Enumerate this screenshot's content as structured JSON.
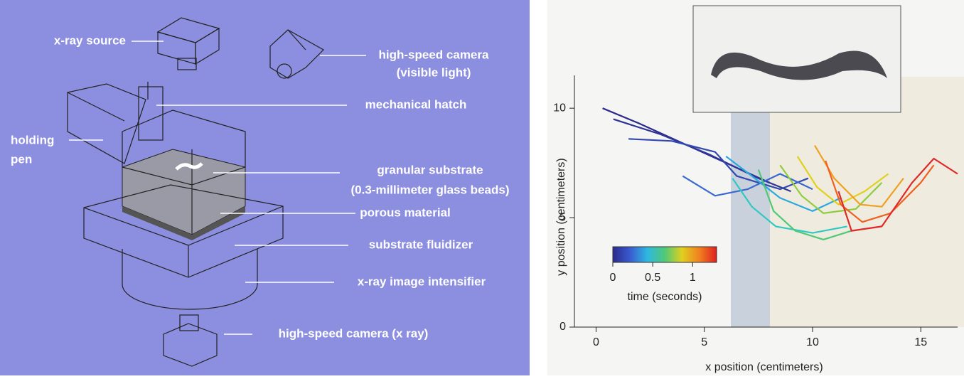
{
  "diagram": {
    "labels": [
      {
        "lines": [
          "x-ray source"
        ]
      },
      {
        "lines": [
          "high-speed camera",
          "(visible light)"
        ]
      },
      {
        "lines": [
          "mechanical hatch"
        ]
      },
      {
        "lines": [
          "holding",
          "pen"
        ]
      },
      {
        "lines": [
          "granular substrate",
          "(0.3-millimeter glass beads)"
        ]
      },
      {
        "lines": [
          "porous material"
        ]
      },
      {
        "lines": [
          "substrate fluidizer"
        ]
      },
      {
        "lines": [
          "x-ray image intensifier"
        ]
      },
      {
        "lines": [
          "high-speed camera (x ray)"
        ]
      }
    ]
  },
  "chart_data": {
    "type": "line",
    "xlabel": "x position (centimeters)",
    "ylabel": "y position (centimeters)",
    "xlim": [
      -1,
      16.7
    ],
    "ylim": [
      0,
      11.5
    ],
    "xticks": [
      0,
      5,
      10,
      15
    ],
    "yticks": [
      0,
      5,
      10
    ],
    "colorbar": {
      "label": "time (seconds)",
      "lim": [
        0,
        1.3
      ],
      "ticks": [
        0,
        0.5,
        1
      ],
      "colors": [
        "#2c2a8a",
        "#3a5bd0",
        "#2eb8e0",
        "#50c878",
        "#e0d020",
        "#f08020",
        "#e02020"
      ]
    },
    "series": [
      {
        "color": "#2c2a8a",
        "x": [
          0.3,
          2,
          4,
          6,
          8
        ],
        "y": [
          10.0,
          9.3,
          8.4,
          7.5,
          6.6
        ]
      },
      {
        "color": "#2e3596",
        "x": [
          0.8,
          3,
          5.2,
          7.5,
          9
        ],
        "y": [
          9.5,
          8.8,
          7.9,
          6.8,
          6.2
        ]
      },
      {
        "color": "#3248b0",
        "x": [
          1.5,
          3.5,
          5.5,
          6.5,
          8.5,
          9.8
        ],
        "y": [
          8.6,
          8.5,
          8.0,
          6.9,
          6.3,
          6.8
        ]
      },
      {
        "color": "#3a6ad0",
        "x": [
          4,
          5.5,
          7,
          8.5,
          10
        ],
        "y": [
          6.9,
          6.0,
          6.3,
          7.0,
          6.3
        ]
      },
      {
        "color": "#2aa8e0",
        "x": [
          6,
          7.2,
          8.5,
          10,
          11.3
        ],
        "y": [
          7.8,
          6.9,
          5.9,
          5.3,
          5.9
        ]
      },
      {
        "color": "#30c8c0",
        "x": [
          6.3,
          7.2,
          8.3,
          10,
          11.6
        ],
        "y": [
          6.8,
          5.5,
          4.6,
          4.3,
          4.6
        ]
      },
      {
        "color": "#50c878",
        "x": [
          7.5,
          8.2,
          9.2,
          10.5,
          11.8
        ],
        "y": [
          7.2,
          5.3,
          4.4,
          4.0,
          4.4
        ]
      },
      {
        "color": "#90cc40",
        "x": [
          8.5,
          9.5,
          10.5,
          12,
          13.2
        ],
        "y": [
          7.4,
          6.0,
          5.2,
          5.4,
          6.6
        ]
      },
      {
        "color": "#e0d020",
        "x": [
          9.3,
          10.2,
          11.2,
          12.4,
          13.5
        ],
        "y": [
          7.8,
          6.4,
          5.6,
          6.2,
          7.0
        ]
      },
      {
        "color": "#f0a020",
        "x": [
          10.1,
          11,
          12.2,
          13.2,
          14.2
        ],
        "y": [
          8.3,
          6.8,
          5.6,
          5.5,
          6.8
        ]
      },
      {
        "color": "#f06020",
        "x": [
          10.6,
          11.3,
          12.3,
          13.6,
          15,
          15.6
        ],
        "y": [
          7.6,
          5.6,
          4.8,
          5.2,
          6.6,
          7.4
        ]
      },
      {
        "color": "#e02828",
        "x": [
          11.2,
          11.8,
          13.2,
          14.6,
          15.6,
          16.7
        ],
        "y": [
          6.2,
          4.4,
          4.6,
          6.6,
          7.7,
          7.0
        ]
      }
    ]
  }
}
